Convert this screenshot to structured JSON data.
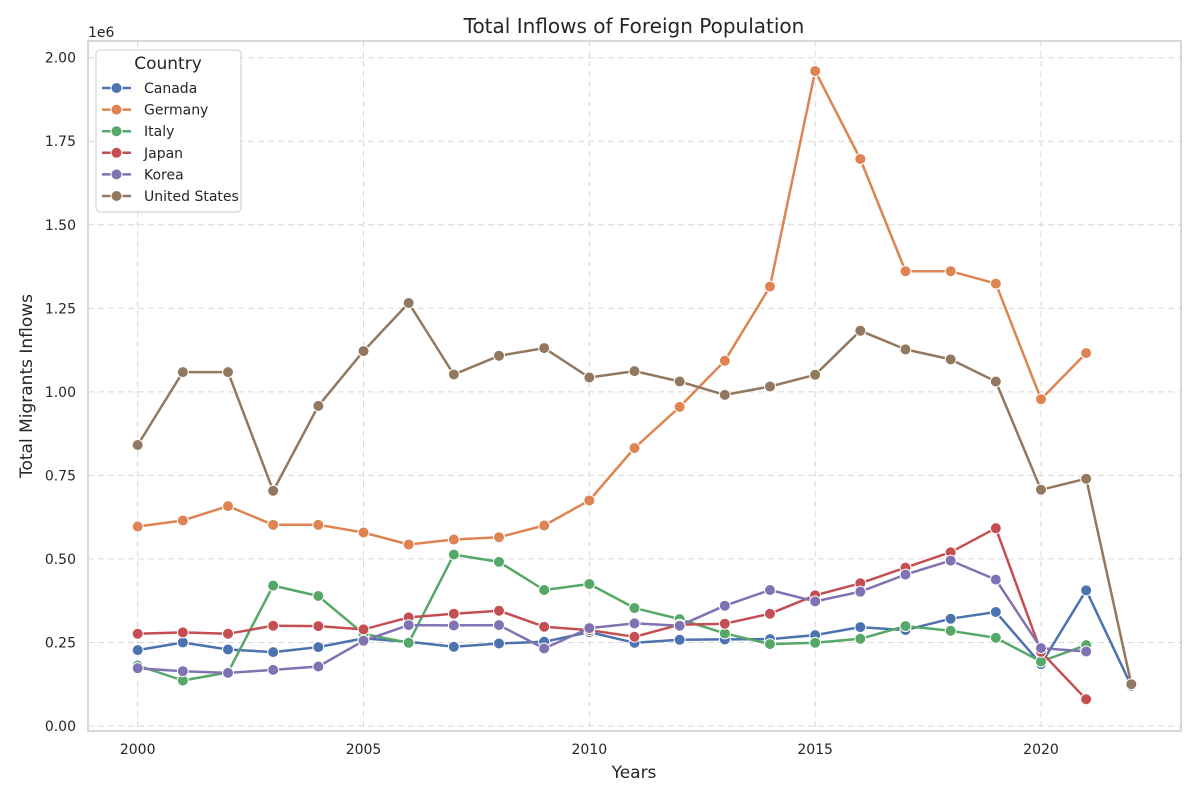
{
  "chart_data": {
    "type": "line",
    "title": "Total Inflows of Foreign Population",
    "xlabel": "Years",
    "ylabel": "Total Migrants Inflows",
    "y_offset_label": "1e6",
    "xlim": [
      1998.9,
      2023.1
    ],
    "ylim": [
      -0.015,
      2.05
    ],
    "x_ticks": [
      2000,
      2005,
      2010,
      2015,
      2020
    ],
    "x_tick_labels": [
      "2000",
      "2005",
      "2010",
      "2015",
      "2020"
    ],
    "y_ticks": [
      0,
      0.25,
      0.5,
      0.75,
      1.0,
      1.25,
      1.5,
      1.75,
      2.0
    ],
    "y_tick_labels": [
      "0.00",
      "0.25",
      "0.50",
      "0.75",
      "1.00",
      "1.25",
      "1.50",
      "1.75",
      "2.00"
    ],
    "grid": true,
    "legend": {
      "title": "Country",
      "placement": "upper-left"
    },
    "x": [
      2000,
      2001,
      2002,
      2003,
      2004,
      2005,
      2006,
      2007,
      2008,
      2009,
      2010,
      2011,
      2012,
      2013,
      2014,
      2015,
      2016,
      2017,
      2018,
      2019,
      2020,
      2021,
      2022
    ],
    "series": [
      {
        "name": "Canada",
        "color": "#4c72b0",
        "values": [
          0.227,
          0.25,
          0.229,
          0.221,
          0.236,
          0.262,
          0.252,
          0.237,
          0.247,
          0.252,
          0.281,
          0.249,
          0.258,
          0.259,
          0.26,
          0.272,
          0.296,
          0.287,
          0.321,
          0.341,
          0.185,
          0.406,
          0.12
        ]
      },
      {
        "name": "Germany",
        "color": "#dd8452",
        "values": [
          0.597,
          0.615,
          0.658,
          0.602,
          0.602,
          0.579,
          0.543,
          0.558,
          0.565,
          0.6,
          0.675,
          0.832,
          0.955,
          1.093,
          1.315,
          1.96,
          1.697,
          1.361,
          1.361,
          1.324,
          0.978,
          1.116,
          null
        ]
      },
      {
        "name": "Italy",
        "color": "#55a868",
        "values": [
          0.181,
          0.136,
          0.16,
          0.42,
          0.389,
          0.276,
          0.249,
          0.513,
          0.491,
          0.407,
          0.425,
          0.353,
          0.32,
          0.277,
          0.245,
          0.249,
          0.261,
          0.299,
          0.285,
          0.264,
          0.193,
          0.242,
          null
        ]
      },
      {
        "name": "Japan",
        "color": "#c44e52",
        "values": [
          0.276,
          0.28,
          0.276,
          0.3,
          0.299,
          0.289,
          0.325,
          0.336,
          0.345,
          0.297,
          0.287,
          0.267,
          0.303,
          0.306,
          0.336,
          0.391,
          0.427,
          0.474,
          0.52,
          0.592,
          0.222,
          0.08,
          null
        ]
      },
      {
        "name": "Korea",
        "color": "#8172b3",
        "values": [
          0.173,
          0.164,
          0.159,
          0.168,
          0.178,
          0.255,
          0.302,
          0.301,
          0.302,
          0.232,
          0.293,
          0.307,
          0.3,
          0.36,
          0.407,
          0.373,
          0.402,
          0.453,
          0.495,
          0.438,
          0.233,
          0.223,
          null
        ]
      },
      {
        "name": "United States",
        "color": "#937860",
        "values": [
          0.841,
          1.059,
          1.059,
          0.704,
          0.958,
          1.122,
          1.266,
          1.052,
          1.108,
          1.131,
          1.043,
          1.062,
          1.031,
          0.991,
          1.016,
          1.051,
          1.183,
          1.127,
          1.097,
          1.031,
          0.707,
          0.74,
          0.125
        ]
      }
    ]
  }
}
